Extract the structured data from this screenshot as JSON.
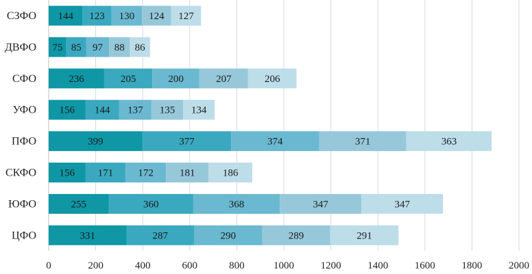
{
  "chart_data": {
    "type": "bar",
    "orientation": "horizontal",
    "stacked": true,
    "categories": [
      "СЗФО",
      "ДВФО",
      "СФО",
      "УФО",
      "ПФО",
      "СКФО",
      "ЮФО",
      "ЦФО"
    ],
    "series": [
      {
        "values": [
          144,
          75,
          236,
          156,
          399,
          156,
          255,
          331
        ],
        "color": "#0f97a6"
      },
      {
        "values": [
          123,
          85,
          205,
          144,
          377,
          171,
          360,
          287
        ],
        "color": "#3aa9c0"
      },
      {
        "values": [
          130,
          97,
          200,
          137,
          374,
          172,
          368,
          290
        ],
        "color": "#6ab9d1"
      },
      {
        "values": [
          124,
          88,
          207,
          135,
          371,
          181,
          347,
          289
        ],
        "color": "#96c8da"
      },
      {
        "values": [
          127,
          86,
          206,
          134,
          363,
          186,
          347,
          291
        ],
        "color": "#bddde9"
      }
    ],
    "x_ticks": [
      "0",
      "200",
      "400",
      "600",
      "800",
      "1000",
      "1200",
      "1400",
      "1600",
      "1800",
      "2000"
    ],
    "xlim": [
      0,
      2000
    ],
    "grid": "vertical",
    "legend": "none",
    "data_labels": true
  }
}
